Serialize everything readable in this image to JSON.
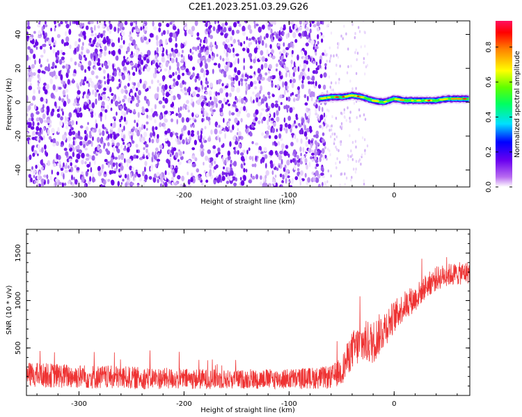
{
  "title": "C2E1.2023.251.03.29.G26",
  "chart_data": [
    {
      "type": "heatmap",
      "xlabel": "Height of straight line (km)",
      "ylabel": "Frequency (Hz)",
      "xlim": [
        -350,
        72
      ],
      "ylim": [
        -50,
        48
      ],
      "x_ticks": [
        "-300",
        "-200",
        "-100",
        "0"
      ],
      "y_ticks": [
        "40",
        "20",
        "0",
        "-20",
        "-40"
      ],
      "colorbar": {
        "label": "Normalized spectral amplitude",
        "range": [
          0.0,
          0.95
        ],
        "ticks": [
          "0.0",
          "0.2",
          "0.4",
          "0.6",
          "0.8"
        ],
        "palette": [
          "#ffffff",
          "#8a2be2",
          "#0000ff",
          "#00ffff",
          "#00ff00",
          "#ffff00",
          "#ff8000",
          "#ff0000",
          "#ff1493"
        ]
      },
      "noise_region_x": [
        -350,
        -65
      ],
      "sparse_region_x": [
        -65,
        -25
      ],
      "carrier_trace": {
        "x": [
          -72,
          -60,
          -50,
          -40,
          -30,
          -20,
          -10,
          0,
          10,
          20,
          30,
          40,
          50,
          60,
          72
        ],
        "y": [
          2,
          3,
          3,
          4,
          3,
          1,
          0,
          2,
          1,
          1,
          1,
          1,
          2,
          2,
          2
        ]
      }
    },
    {
      "type": "line",
      "xlabel": "Height of straight line (km)",
      "ylabel": "SNR (10 * v/v)",
      "xlim": [
        -350,
        72
      ],
      "ylim": [
        0,
        1750
      ],
      "x_ticks": [
        "-300",
        "-200",
        "-100",
        "0"
      ],
      "y_ticks": [
        "500",
        "1000",
        "1500"
      ],
      "series": [
        {
          "color": "#ee3333",
          "x": [
            -350,
            -300,
            -250,
            -200,
            -150,
            -100,
            -60,
            -50,
            -40,
            -30,
            -20,
            -10,
            0,
            10,
            20,
            30,
            40,
            50,
            60,
            72
          ],
          "y_mean": [
            220,
            200,
            185,
            175,
            170,
            175,
            190,
            260,
            480,
            560,
            560,
            700,
            830,
            950,
            1020,
            1150,
            1230,
            1270,
            1280,
            1300
          ],
          "y_noise": [
            130,
            130,
            120,
            110,
            100,
            110,
            120,
            150,
            200,
            230,
            230,
            210,
            170,
            150,
            140,
            130,
            130,
            120,
            120,
            120
          ]
        }
      ]
    }
  ]
}
